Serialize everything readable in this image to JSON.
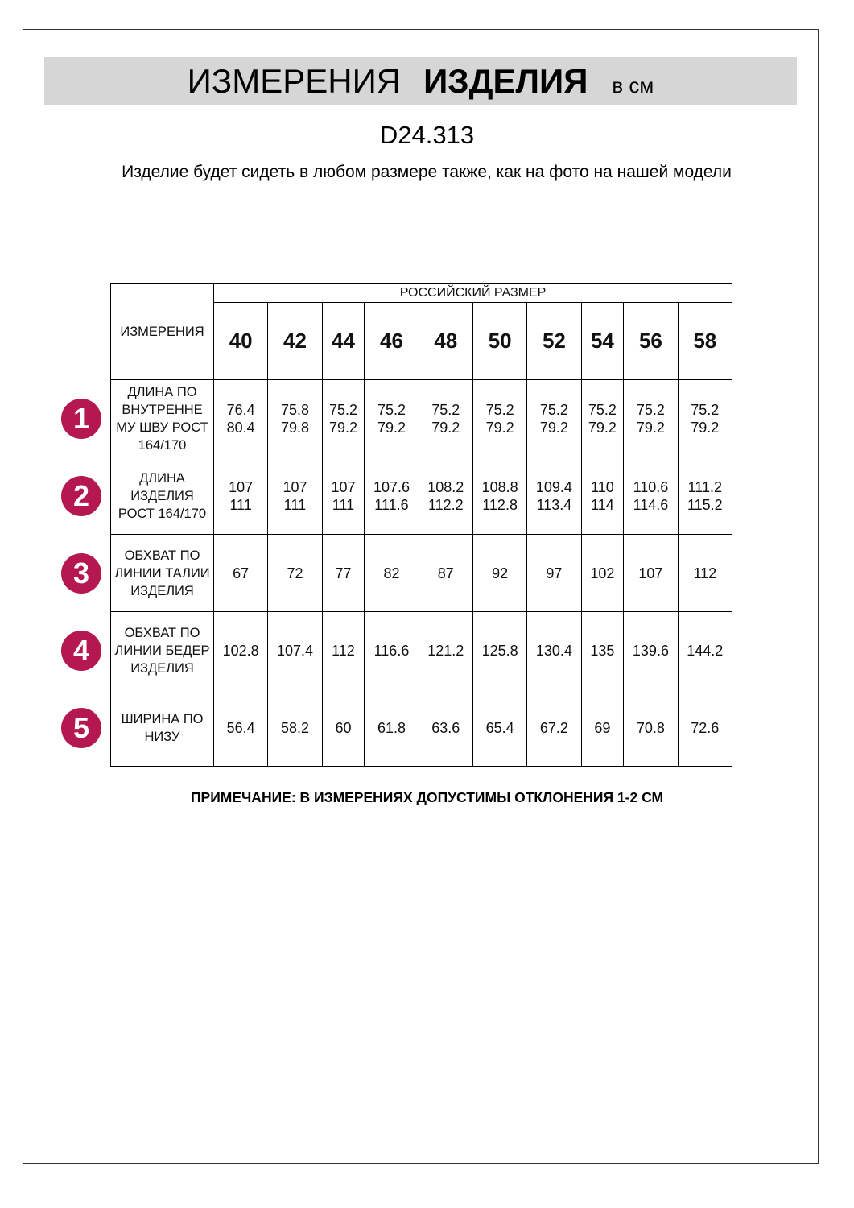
{
  "header": {
    "title_light": "ИЗМЕРЕНИЯ",
    "title_bold": "ИЗДЕЛИЯ",
    "unit": "в см"
  },
  "article": "D24.313",
  "subtitle": "Изделие будет сидеть в любом размере также, как на фото на нашей модели",
  "table": {
    "corner_label": "ИЗМЕРЕНИЯ",
    "size_group_label": "РОССИЙСКИЙ РАЗМЕР",
    "sizes": [
      "40",
      "42",
      "44",
      "46",
      "48",
      "50",
      "52",
      "54",
      "56",
      "58"
    ],
    "rows": [
      {
        "number": "1",
        "label": "ДЛИНА ПО ВНУТРЕННЕ МУ ШВУ РОСТ 164/170",
        "values": [
          "76.4\n80.4",
          "75.8\n79.8",
          "75.2\n79.2",
          "75.2\n79.2",
          "75.2\n79.2",
          "75.2\n79.2",
          "75.2\n79.2",
          "75.2\n79.2",
          "75.2\n79.2",
          "75.2\n79.2"
        ]
      },
      {
        "number": "2",
        "label": "ДЛИНА ИЗДЕЛИЯ РОСТ 164/170",
        "values": [
          "107\n111",
          "107\n111",
          "107\n111",
          "107.6\n111.6",
          "108.2\n112.2",
          "108.8\n112.8",
          "109.4\n113.4",
          "110\n114",
          "110.6\n114.6",
          "111.2\n115.2"
        ]
      },
      {
        "number": "3",
        "label": "ОБХВАТ ПО ЛИНИИ ТАЛИИ ИЗДЕЛИЯ",
        "values": [
          "67",
          "72",
          "77",
          "82",
          "87",
          "92",
          "97",
          "102",
          "107",
          "112"
        ]
      },
      {
        "number": "4",
        "label": "ОБХВАТ ПО ЛИНИИ БЕДЕР ИЗДЕЛИЯ",
        "values": [
          "102.8",
          "107.4",
          "112",
          "116.6",
          "121.2",
          "125.8",
          "130.4",
          "135",
          "139.6",
          "144.2"
        ]
      },
      {
        "number": "5",
        "label": "ШИРИНА ПО НИЗУ",
        "values": [
          "56.4",
          "58.2",
          "60",
          "61.8",
          "63.6",
          "65.4",
          "67.2",
          "69",
          "70.8",
          "72.6"
        ]
      }
    ]
  },
  "note": "ПРИМЕЧАНИЕ: В ИЗМЕРЕНИЯХ ДОПУСТИМЫ ОТКЛОНЕНИЯ 1-2 СМ",
  "colors": {
    "badge": "#b5174f",
    "banner": "#d6d6d6"
  }
}
